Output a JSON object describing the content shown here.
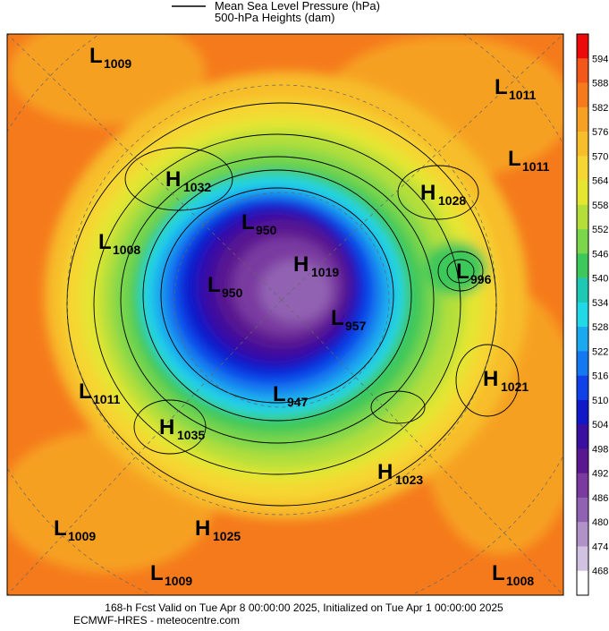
{
  "legend": {
    "line_label": "Mean Sea Level Pressure (hPa)",
    "fill_label": "500-hPa Heights (dam)"
  },
  "centers": [
    {
      "kind": "L",
      "value": "1009"
    },
    {
      "kind": "L",
      "value": "1011"
    },
    {
      "kind": "L",
      "value": "1011"
    },
    {
      "kind": "H",
      "value": "1032"
    },
    {
      "kind": "H",
      "value": "1028"
    },
    {
      "kind": "L",
      "value": "1008"
    },
    {
      "kind": "L",
      "value": "950"
    },
    {
      "kind": "H",
      "value": "1019"
    },
    {
      "kind": "L",
      "value": "996"
    },
    {
      "kind": "L",
      "value": "950"
    },
    {
      "kind": "L",
      "value": "957"
    },
    {
      "kind": "H",
      "value": "1021"
    },
    {
      "kind": "L",
      "value": "1011"
    },
    {
      "kind": "L",
      "value": "947"
    },
    {
      "kind": "H",
      "value": "1035"
    },
    {
      "kind": "H",
      "value": "1023"
    },
    {
      "kind": "L",
      "value": "1009"
    },
    {
      "kind": "H",
      "value": "1025"
    },
    {
      "kind": "L",
      "value": "1009"
    },
    {
      "kind": "L",
      "value": "1008"
    }
  ],
  "colorbar": {
    "labels": [
      "594",
      "588",
      "582",
      "576",
      "570",
      "564",
      "558",
      "552",
      "546",
      "540",
      "534",
      "528",
      "522",
      "516",
      "510",
      "504",
      "498",
      "492",
      "486",
      "480",
      "474",
      "468"
    ],
    "colors": [
      "#ec0a0a",
      "#f2581a",
      "#f57a1c",
      "#f6a024",
      "#f7bd2a",
      "#f6d632",
      "#e4e630",
      "#b4df3a",
      "#7cd64c",
      "#3cc85a",
      "#1ec8b4",
      "#20d8e6",
      "#1aa8ee",
      "#1478f0",
      "#1040e8",
      "#1018c8",
      "#3a10a0",
      "#5a1890",
      "#7a3aa0",
      "#9262b2",
      "#b092c8",
      "#d2c2e2",
      "#ffffff"
    ]
  },
  "footer": {
    "line1": "168-h Fcst Valid on Tue Apr  8 00:00:00 2025, Initialized on Tue Apr  1 00:00:00 2025",
    "line2": "ECMWF-HRES  - meteocentre.com"
  }
}
